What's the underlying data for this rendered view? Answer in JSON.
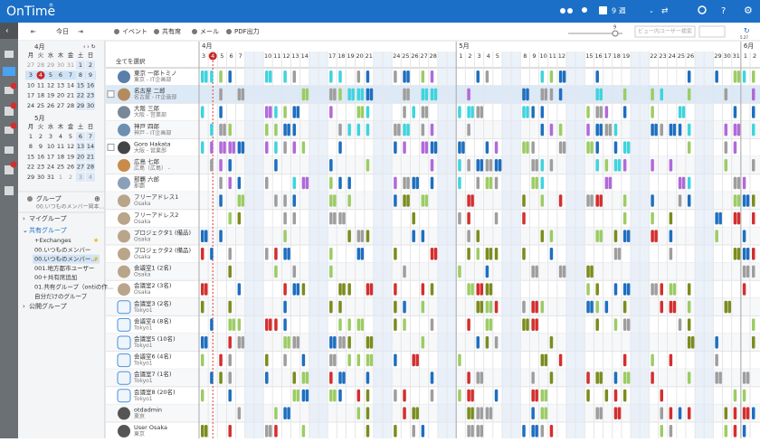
{
  "header": {
    "logo": "OnTime",
    "logo_mark": "®",
    "week": "9 週"
  },
  "toolbar": {
    "today": "今日",
    "event": "イベント",
    "shared": "共有席",
    "mail": "メール",
    "pdf": "PDF出力",
    "zoom": "9",
    "search_placeholder": "ビュー内ユーザー検索",
    "refresh_date": "5.27"
  },
  "mini_calendars": [
    {
      "title": "4月",
      "weekdays": [
        "月",
        "火",
        "水",
        "木",
        "金",
        "土",
        "日"
      ],
      "weeks": [
        [
          27,
          28,
          29,
          30,
          31,
          1,
          2
        ],
        [
          3,
          4,
          5,
          6,
          7,
          8,
          9
        ],
        [
          10,
          11,
          12,
          13,
          14,
          15,
          16
        ],
        [
          17,
          18,
          19,
          20,
          21,
          22,
          23
        ],
        [
          24,
          25,
          26,
          27,
          28,
          29,
          30
        ]
      ]
    },
    {
      "title": "5月",
      "weekdays": [
        "月",
        "火",
        "水",
        "木",
        "金",
        "土",
        "日"
      ],
      "weeks": [
        [
          1,
          2,
          3,
          4,
          5,
          6,
          7
        ],
        [
          8,
          9,
          10,
          11,
          12,
          13,
          14
        ],
        [
          15,
          16,
          17,
          18,
          19,
          20,
          21
        ],
        [
          22,
          23,
          24,
          25,
          26,
          27,
          28
        ],
        [
          29,
          30,
          31,
          1,
          2,
          3,
          4
        ]
      ]
    }
  ],
  "groups": {
    "title": "グループ",
    "filter": "00.いつものメンバー岡本...",
    "my": "マイグループ",
    "shared": "共有グループ",
    "shared_items": [
      "+Exchanges",
      "00.いつものメンバー",
      "00.いつものメンバー...",
      "001.地方都市ユーザー",
      "00＋共有席追加",
      "01.共有グループ（ontiの作...",
      "自分だけのグループ"
    ],
    "public": "公開グループ"
  },
  "people": {
    "select_all": "全てを選択",
    "rows": [
      {
        "name": "東京 一郎トミノ",
        "sub": "東京 - IT企画部"
      },
      {
        "name": "名古屋 二郎",
        "sub": "名古屋 - IT企画部"
      },
      {
        "name": "大阪 三郎",
        "sub": "大阪 - 営業部"
      },
      {
        "name": "神戸 四郎",
        "sub": "神戸 - IT企画部"
      },
      {
        "name": "Goro Hakata",
        "sub": "大阪 - 営業部"
      },
      {
        "name": "広島 七郎",
        "sub": "広島（広島） -"
      },
      {
        "name": "那覇 六郎",
        "sub": "那覇"
      },
      {
        "name": "フリーアドレス1",
        "sub": "Osaka"
      },
      {
        "name": "フリーアドレス2",
        "sub": "Osaka"
      },
      {
        "name": "プロジェクタ1 (備品)",
        "sub": "Osaka"
      },
      {
        "name": "プロジェクタ2 (備品)",
        "sub": "Osaka"
      },
      {
        "name": "会議室1 (2名)",
        "sub": "Osaka"
      },
      {
        "name": "会議室2 (3名)",
        "sub": "Osaka"
      },
      {
        "name": "会議室3 (2名)",
        "sub": "Tokyo1"
      },
      {
        "name": "会議室4 (8名)",
        "sub": "Tokyo1"
      },
      {
        "name": "会議室5 (10名)",
        "sub": "Tokyo1"
      },
      {
        "name": "会議室6 (4名)",
        "sub": "Tokyo1"
      },
      {
        "name": "会議室7 (1名)",
        "sub": "Tokyo1"
      },
      {
        "name": "会議室8 (20名)",
        "sub": "Tokyo1"
      },
      {
        "name": "otdadmin",
        "sub": "東京"
      },
      {
        "name": "User Osaka",
        "sub": "東京"
      }
    ]
  },
  "timeline": {
    "months": [
      "4月",
      "5月",
      "6月"
    ],
    "days": [
      3,
      4,
      5,
      6,
      7,
      null,
      null,
      10,
      11,
      12,
      13,
      14,
      null,
      null,
      17,
      18,
      19,
      20,
      21,
      null,
      null,
      24,
      25,
      26,
      27,
      28,
      null,
      null,
      1,
      2,
      3,
      4,
      5,
      null,
      null,
      8,
      9,
      10,
      11,
      12,
      null,
      null,
      15,
      16,
      17,
      18,
      19,
      null,
      null,
      22,
      23,
      24,
      25,
      26,
      null,
      null,
      29,
      30,
      31,
      1,
      2
    ]
  }
}
